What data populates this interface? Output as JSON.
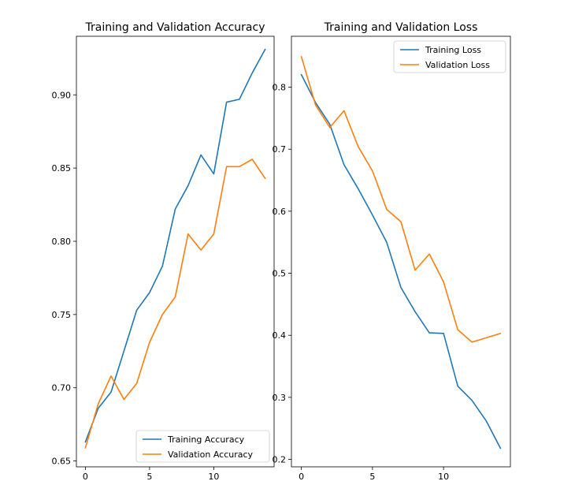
{
  "chart_data": [
    {
      "type": "line",
      "title": "Training and Validation Accuracy",
      "xlabel": "",
      "ylabel": "",
      "xlim": [
        -0.7,
        14.7
      ],
      "ylim": [
        0.646,
        0.94
      ],
      "xticks": [
        0,
        5,
        10
      ],
      "xtick_labels": [
        "0",
        "5",
        "10"
      ],
      "yticks": [
        0.65,
        0.7,
        0.75,
        0.8,
        0.85,
        0.9
      ],
      "ytick_labels": [
        "0.65",
        "0.70",
        "0.75",
        "0.80",
        "0.85",
        "0.90"
      ],
      "legend_position": "lower-right",
      "x": [
        0,
        1,
        2,
        3,
        4,
        5,
        6,
        7,
        8,
        9,
        10,
        11,
        12,
        13,
        14
      ],
      "series": [
        {
          "name": "Training Accuracy",
          "color": "#1f77b4",
          "values": [
            0.663,
            0.686,
            0.697,
            0.725,
            0.753,
            0.765,
            0.783,
            0.822,
            0.838,
            0.859,
            0.846,
            0.895,
            0.897,
            0.915,
            0.931
          ]
        },
        {
          "name": "Validation Accuracy",
          "color": "#ff7f0e",
          "values": [
            0.659,
            0.689,
            0.708,
            0.692,
            0.703,
            0.731,
            0.75,
            0.762,
            0.805,
            0.794,
            0.805,
            0.851,
            0.851,
            0.856,
            0.843
          ]
        }
      ]
    },
    {
      "type": "line",
      "title": "Training and Validation Loss",
      "xlabel": "",
      "ylabel": "",
      "xlim": [
        -0.7,
        14.7
      ],
      "ylim": [
        0.188,
        0.882
      ],
      "xticks": [
        0,
        5,
        10
      ],
      "xtick_labels": [
        "0",
        "5",
        "10"
      ],
      "yticks": [
        0.2,
        0.3,
        0.4,
        0.5,
        0.6,
        0.7,
        0.8
      ],
      "ytick_labels": [
        "0.2",
        "0.3",
        "0.4",
        "0.5",
        "0.6",
        "0.7",
        "0.8"
      ],
      "legend_position": "upper-right",
      "x": [
        0,
        1,
        2,
        3,
        4,
        5,
        6,
        7,
        8,
        9,
        10,
        11,
        12,
        13,
        14
      ],
      "series": [
        {
          "name": "Training Loss",
          "color": "#1f77b4",
          "values": [
            0.82,
            0.775,
            0.74,
            0.675,
            0.636,
            0.594,
            0.55,
            0.477,
            0.438,
            0.404,
            0.403,
            0.318,
            0.295,
            0.262,
            0.218
          ]
        },
        {
          "name": "Validation Loss",
          "color": "#ff7f0e",
          "values": [
            0.849,
            0.771,
            0.735,
            0.762,
            0.704,
            0.665,
            0.603,
            0.583,
            0.505,
            0.531,
            0.486,
            0.409,
            0.389,
            0.396,
            0.403
          ]
        }
      ]
    }
  ]
}
